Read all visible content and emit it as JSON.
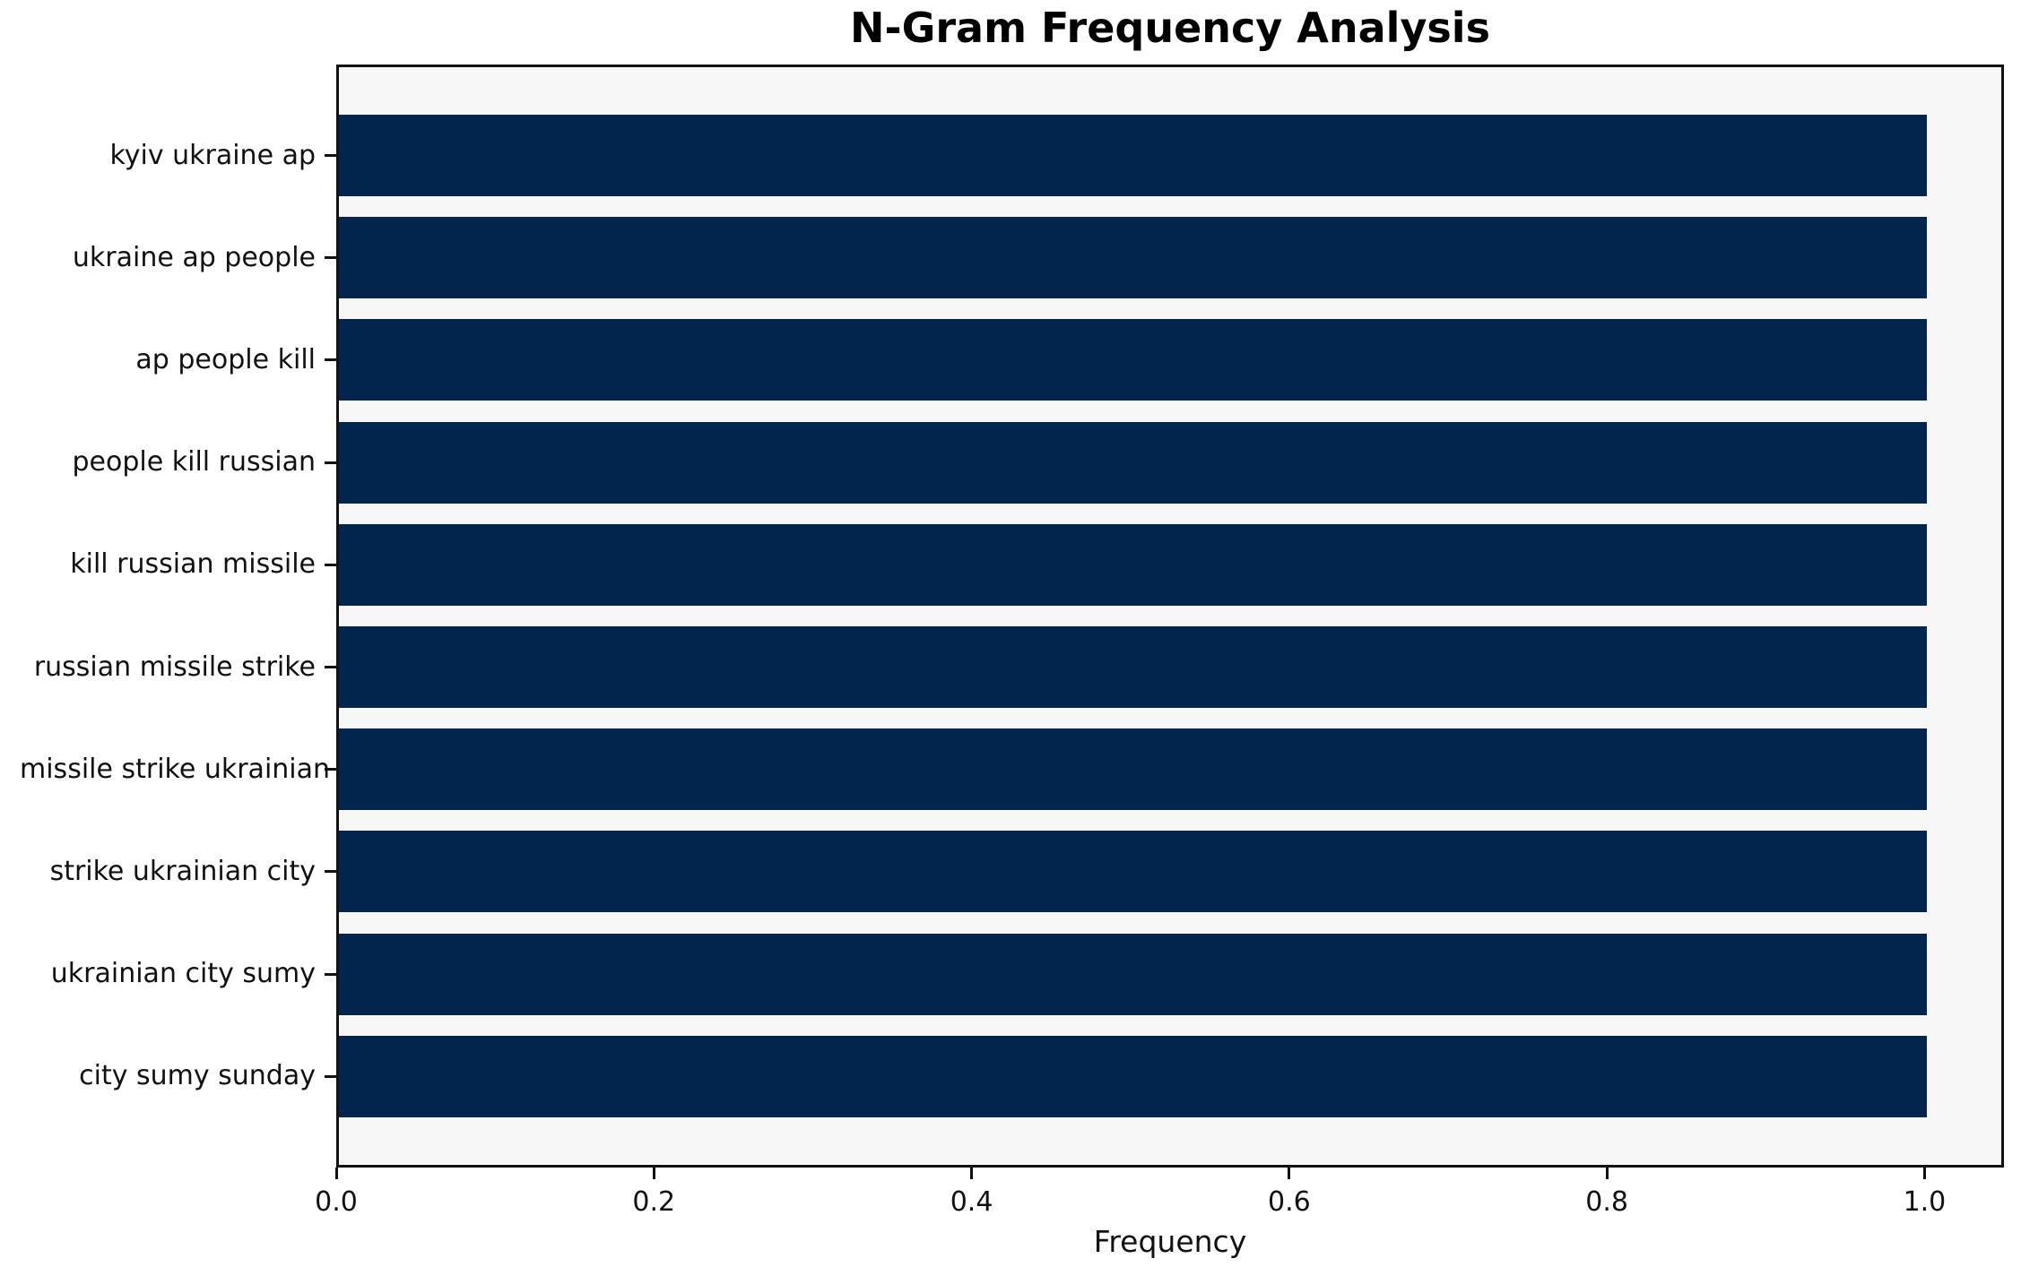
{
  "chart_data": {
    "type": "bar",
    "orientation": "horizontal",
    "title": "N-Gram Frequency Analysis",
    "xlabel": "Frequency",
    "ylabel": "",
    "categories": [
      "kyiv ukraine ap",
      "ukraine ap people",
      "ap people kill",
      "people kill russian",
      "kill russian missile",
      "russian missile strike",
      "missile strike ukrainian",
      "strike ukrainian city",
      "ukrainian city sumy",
      "city sumy sunday"
    ],
    "values": [
      1.0,
      1.0,
      1.0,
      1.0,
      1.0,
      1.0,
      1.0,
      1.0,
      1.0,
      1.0
    ],
    "x_ticks": [
      {
        "value": 0.0,
        "label": "0.0"
      },
      {
        "value": 0.2,
        "label": "0.2"
      },
      {
        "value": 0.4,
        "label": "0.4"
      },
      {
        "value": 0.6,
        "label": "0.6"
      },
      {
        "value": 0.8,
        "label": "0.8"
      },
      {
        "value": 1.0,
        "label": "1.0"
      }
    ],
    "xlim": [
      0,
      1.05
    ],
    "grid": false,
    "legend": "none",
    "colors": {
      "bar": "#02254e",
      "plot_background": "#f7f7f7",
      "figure_background": "#ffffff",
      "spine": "#111111",
      "text": "#111111"
    }
  }
}
